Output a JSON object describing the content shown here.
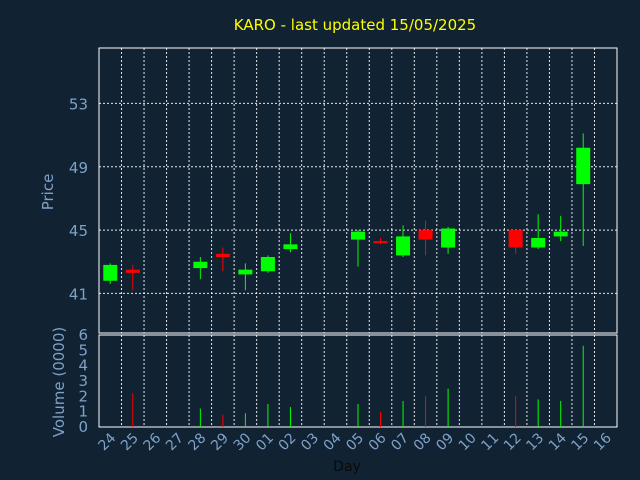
{
  "chart_data": {
    "type": "candlestick",
    "title": "KARO - last updated 15/05/2025",
    "ylabel_price": "Price",
    "ylabel_volume": "Volume (0000)",
    "xlabel": "Day",
    "price_ylim": [
      38.5,
      56.5
    ],
    "price_ticks": [
      41,
      45,
      49,
      53
    ],
    "volume_ylim": [
      0,
      6
    ],
    "volume_ticks": [
      0,
      1,
      2,
      3,
      4,
      5,
      6
    ],
    "grid": true,
    "x_tick_labels": [
      "24",
      "25",
      "26",
      "27",
      "28",
      "29",
      "30",
      "01",
      "02",
      "03",
      "04",
      "05",
      "06",
      "07",
      "08",
      "09",
      "10",
      "11",
      "12",
      "13",
      "14",
      "15",
      "16"
    ],
    "up_color": "#00ff00",
    "down_color": "#ff0000",
    "candles": [
      {
        "day": "24",
        "open": 41.8,
        "close": 42.8,
        "high": 42.9,
        "low": 41.6,
        "volume": 0
      },
      {
        "day": "25",
        "open": 42.5,
        "close": 42.3,
        "high": 42.8,
        "low": 41.2,
        "volume": 2.2
      },
      {
        "day": "28",
        "open": 42.6,
        "close": 43.0,
        "high": 43.3,
        "low": 41.9,
        "volume": 1.2
      },
      {
        "day": "29",
        "open": 43.5,
        "close": 43.3,
        "high": 43.9,
        "low": 42.4,
        "volume": 0.8
      },
      {
        "day": "30",
        "open": 42.2,
        "close": 42.5,
        "high": 42.9,
        "low": 41.2,
        "volume": 0.9
      },
      {
        "day": "01",
        "open": 42.4,
        "close": 43.3,
        "high": 43.4,
        "low": 42.3,
        "volume": 1.5
      },
      {
        "day": "02",
        "open": 43.8,
        "close": 44.1,
        "high": 44.8,
        "low": 43.6,
        "volume": 1.3
      },
      {
        "day": "05",
        "open": 44.4,
        "close": 44.9,
        "high": 45.0,
        "low": 42.7,
        "volume": 1.5
      },
      {
        "day": "06",
        "open": 44.3,
        "close": 44.2,
        "high": 44.5,
        "low": 44.1,
        "volume": 1.0
      },
      {
        "day": "07",
        "open": 43.4,
        "close": 44.6,
        "high": 45.3,
        "low": 43.3,
        "volume": 1.7
      },
      {
        "day": "08",
        "open": 45.0,
        "close": 44.4,
        "high": 45.6,
        "low": 43.4,
        "volume": 2.0
      },
      {
        "day": "09",
        "open": 43.9,
        "close": 45.1,
        "high": 45.2,
        "low": 43.5,
        "volume": 2.5
      },
      {
        "day": "12",
        "open": 45.0,
        "close": 43.9,
        "high": 45.0,
        "low": 43.5,
        "volume": 2.0
      },
      {
        "day": "13",
        "open": 43.9,
        "close": 44.5,
        "high": 46.0,
        "low": 43.8,
        "volume": 1.8
      },
      {
        "day": "14",
        "open": 44.6,
        "close": 44.9,
        "high": 45.9,
        "low": 44.3,
        "volume": 1.7
      },
      {
        "day": "15",
        "open": 47.9,
        "close": 50.2,
        "high": 51.1,
        "low": 44.0,
        "volume": 5.3
      }
    ]
  }
}
